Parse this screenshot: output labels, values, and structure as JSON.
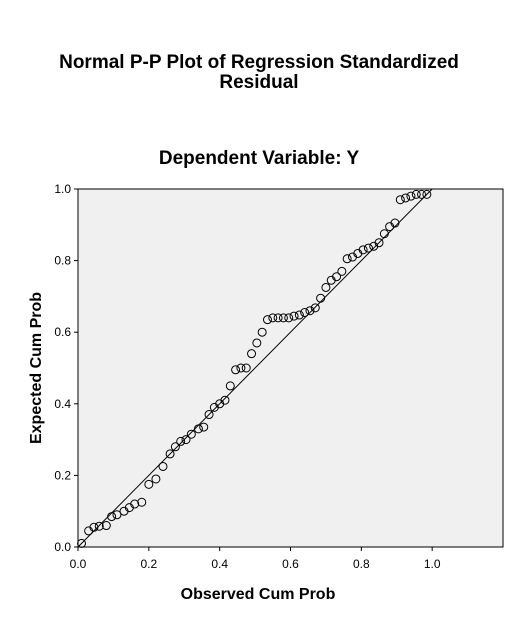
{
  "chart_data": {
    "type": "scatter",
    "title_line1": "Normal P-P Plot of Regression Standardized",
    "title_line2": "Residual",
    "subtitle": "Dependent Variable: Y",
    "xlabel": "Observed Cum Prob",
    "ylabel": "Expected Cum Prob",
    "xlim": [
      0,
      1.2
    ],
    "ylim": [
      0,
      1.0
    ],
    "x_ticks": [
      {
        "value": 0.0,
        "label": "0.0"
      },
      {
        "value": 0.2,
        "label": "0.2"
      },
      {
        "value": 0.4,
        "label": "0.4"
      },
      {
        "value": 0.6,
        "label": "0.6"
      },
      {
        "value": 0.8,
        "label": "0.8"
      },
      {
        "value": 1.0,
        "label": "1.0"
      }
    ],
    "y_ticks": [
      {
        "value": 0.0,
        "label": "0.0"
      },
      {
        "value": 0.2,
        "label": "0.2"
      },
      {
        "value": 0.4,
        "label": "0.4"
      },
      {
        "value": 0.6,
        "label": "0.6"
      },
      {
        "value": 0.8,
        "label": "0.8"
      },
      {
        "value": 1.0,
        "label": "1.0"
      }
    ],
    "grid": false,
    "reference_line": {
      "from": [
        0,
        0
      ],
      "to": [
        1,
        1
      ]
    },
    "points": {
      "x": [
        0.01,
        0.03,
        0.045,
        0.06,
        0.08,
        0.095,
        0.11,
        0.13,
        0.145,
        0.16,
        0.18,
        0.2,
        0.22,
        0.24,
        0.26,
        0.275,
        0.29,
        0.305,
        0.32,
        0.34,
        0.355,
        0.37,
        0.385,
        0.4,
        0.415,
        0.43,
        0.445,
        0.46,
        0.475,
        0.49,
        0.505,
        0.52,
        0.535,
        0.55,
        0.565,
        0.58,
        0.595,
        0.61,
        0.625,
        0.64,
        0.655,
        0.67,
        0.685,
        0.7,
        0.715,
        0.73,
        0.745,
        0.76,
        0.775,
        0.79,
        0.805,
        0.82,
        0.835,
        0.85,
        0.865,
        0.88,
        0.895,
        0.91,
        0.925,
        0.94,
        0.955,
        0.97,
        0.985
      ],
      "y": [
        0.01,
        0.045,
        0.055,
        0.058,
        0.06,
        0.085,
        0.09,
        0.1,
        0.11,
        0.12,
        0.125,
        0.175,
        0.19,
        0.225,
        0.26,
        0.28,
        0.295,
        0.3,
        0.315,
        0.33,
        0.335,
        0.37,
        0.39,
        0.4,
        0.41,
        0.45,
        0.495,
        0.5,
        0.5,
        0.54,
        0.57,
        0.6,
        0.635,
        0.64,
        0.64,
        0.64,
        0.64,
        0.645,
        0.648,
        0.655,
        0.66,
        0.668,
        0.695,
        0.725,
        0.745,
        0.755,
        0.77,
        0.805,
        0.81,
        0.82,
        0.83,
        0.835,
        0.84,
        0.85,
        0.875,
        0.895,
        0.905,
        0.97,
        0.975,
        0.98,
        0.985,
        0.985,
        0.985
      ]
    }
  }
}
